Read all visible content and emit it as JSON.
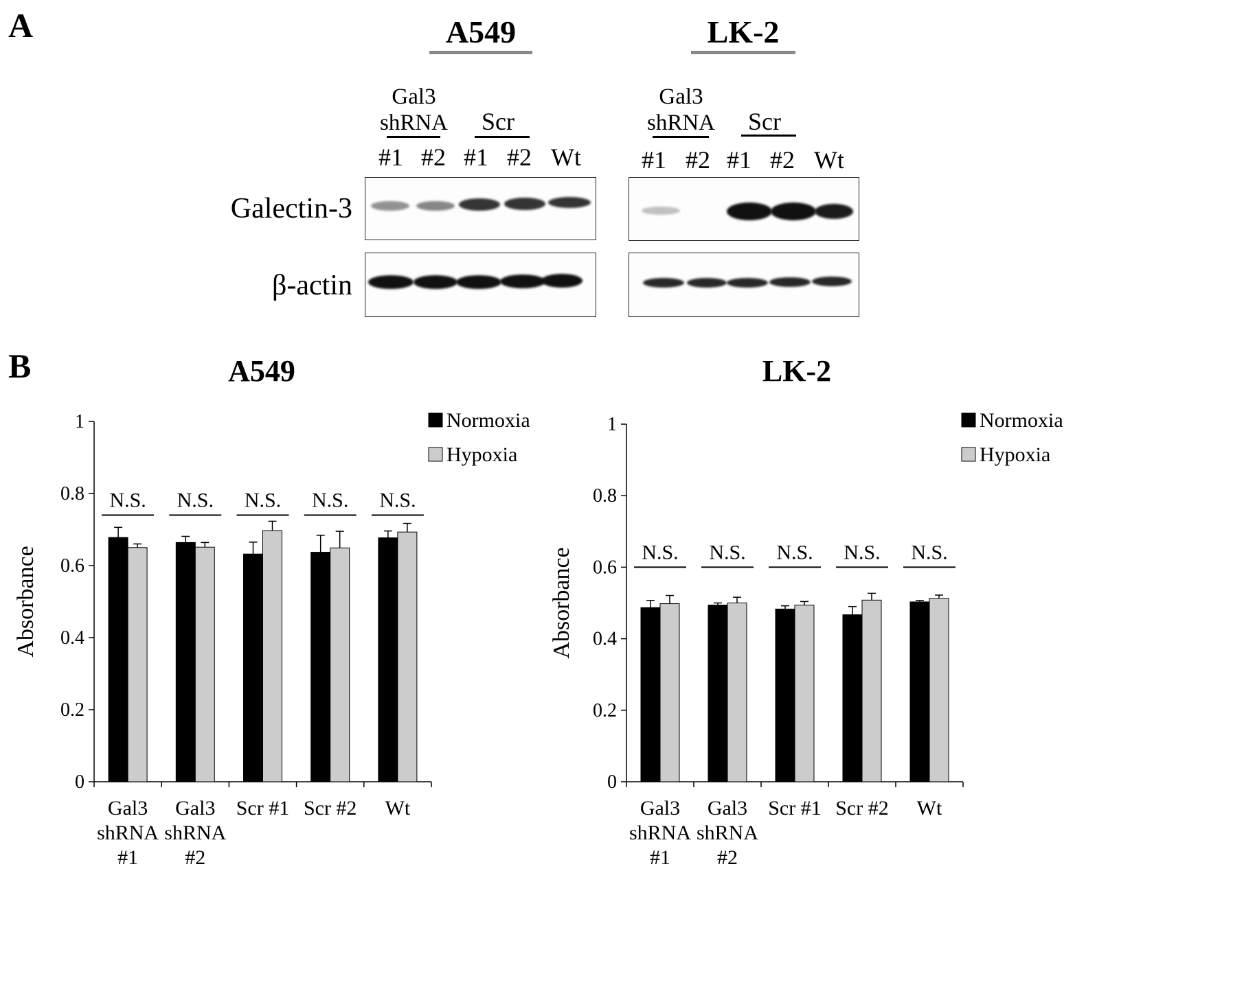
{
  "panel_a": {
    "letter": "A",
    "blots": [
      {
        "title": "A549",
        "group_labels": [
          "Gal3 shRNA",
          "Scr"
        ],
        "lanes": [
          "#1",
          "#2",
          "#1",
          "#2",
          "Wt"
        ],
        "rows": [
          "Galectin-3",
          "β-actin"
        ],
        "galectin_intensity": [
          0.45,
          0.5,
          0.85,
          0.85,
          0.85
        ],
        "actin_intensity": [
          1,
          1,
          1,
          1,
          1
        ]
      },
      {
        "title": "LK-2",
        "group_labels": [
          "Gal3 shRNA",
          "Scr"
        ],
        "lanes": [
          "#1",
          "#2",
          "#1",
          "#2",
          "Wt"
        ],
        "galectin_intensity": [
          0.25,
          0,
          1,
          1,
          0.95
        ],
        "actin_intensity": [
          0.9,
          0.9,
          0.9,
          0.9,
          0.9
        ]
      }
    ]
  },
  "panel_b": {
    "letter": "B"
  },
  "chart_data": [
    {
      "type": "bar",
      "title": "A549",
      "ylabel": "Absorbance",
      "ylim": [
        0,
        1
      ],
      "yticks": [
        "0",
        "0.2",
        "0.4",
        "0.6",
        "0.8",
        "1"
      ],
      "categories": [
        [
          "Gal3",
          "shRNA",
          "#1"
        ],
        [
          "Gal3",
          "shRNA",
          "#2"
        ],
        [
          "Scr #1"
        ],
        [
          "Scr #2"
        ],
        [
          "Wt"
        ]
      ],
      "series": [
        {
          "name": "Normoxia",
          "color": "#000000",
          "values": [
            0.678,
            0.664,
            0.632,
            0.637,
            0.677
          ],
          "errors": [
            0.028,
            0.017,
            0.033,
            0.047,
            0.019
          ]
        },
        {
          "name": "Hypoxia",
          "color": "#cccccc",
          "values": [
            0.65,
            0.651,
            0.697,
            0.649,
            0.693
          ],
          "errors": [
            0.01,
            0.013,
            0.026,
            0.046,
            0.024
          ]
        }
      ],
      "annotations": [
        "N.S.",
        "N.S.",
        "N.S.",
        "N.S.",
        "N.S."
      ],
      "annotation_level": 0.74,
      "legend": "top-right"
    },
    {
      "type": "bar",
      "title": "LK-2",
      "ylabel": "Absorbance",
      "ylim": [
        0,
        1
      ],
      "yticks": [
        "0",
        "0.2",
        "0.4",
        "0.6",
        "0.8",
        "1"
      ],
      "categories": [
        [
          "Gal3",
          "shRNA",
          "#1"
        ],
        [
          "Gal3",
          "shRNA",
          "#2"
        ],
        [
          "Scr #1"
        ],
        [
          "Scr #2"
        ],
        [
          "Wt"
        ]
      ],
      "series": [
        {
          "name": "Normoxia",
          "color": "#000000",
          "values": [
            0.487,
            0.494,
            0.483,
            0.467,
            0.503
          ],
          "errors": [
            0.02,
            0.006,
            0.009,
            0.023,
            0.004
          ]
        },
        {
          "name": "Hypoxia",
          "color": "#cccccc",
          "values": [
            0.498,
            0.5,
            0.494,
            0.508,
            0.513
          ],
          "errors": [
            0.023,
            0.016,
            0.01,
            0.019,
            0.009
          ]
        }
      ],
      "annotations": [
        "N.S.",
        "N.S.",
        "N.S.",
        "N.S.",
        "N.S."
      ],
      "annotation_level": 0.6,
      "legend": "top-right"
    }
  ]
}
